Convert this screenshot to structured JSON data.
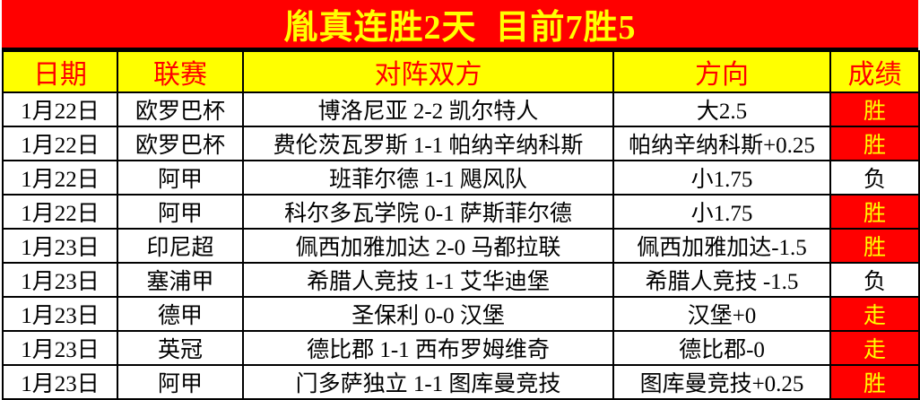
{
  "banner": {
    "title": "胤真连胜2天  目前7胜5"
  },
  "table": {
    "headers": {
      "date": "日期",
      "league": "联赛",
      "match": "对阵双方",
      "direction": "方向",
      "result": "成绩"
    },
    "rows": [
      {
        "date": "1月22日",
        "league": "欧罗巴杯",
        "match": "博洛尼亚 2-2 凯尔特人",
        "direction": "大2.5",
        "result": "胜",
        "highlight": true
      },
      {
        "date": "1月22日",
        "league": "欧罗巴杯",
        "match": "费伦茨瓦罗斯 1-1 帕纳辛纳科斯",
        "direction": "帕纳辛纳科斯+0.25",
        "result": "胜",
        "highlight": true
      },
      {
        "date": "1月22日",
        "league": "阿甲",
        "match": "班菲尔德 1-1 飓风队",
        "direction": "小1.75",
        "result": "负",
        "highlight": false
      },
      {
        "date": "1月22日",
        "league": "阿甲",
        "match": "科尔多瓦学院 0-1 萨斯菲尔德",
        "direction": "小1.75",
        "result": "胜",
        "highlight": true
      },
      {
        "date": "1月23日",
        "league": "印尼超",
        "match": "佩西加雅加达 2-0 马都拉联",
        "direction": "佩西加雅加达-1.5",
        "result": "胜",
        "highlight": true
      },
      {
        "date": "1月23日",
        "league": "塞浦甲",
        "match": "希腊人竞技 1-1 艾华迪堡",
        "direction": "希腊人竞技 -1.5",
        "result": "负",
        "highlight": false
      },
      {
        "date": "1月23日",
        "league": "德甲",
        "match": "圣保利 0-0 汉堡",
        "direction": "汉堡+0",
        "result": "走",
        "highlight": true
      },
      {
        "date": "1月23日",
        "league": "英冠",
        "match": "德比郡 1-1 西布罗姆维奇",
        "direction": "德比郡-0",
        "result": "走",
        "highlight": true
      },
      {
        "date": "1月23日",
        "league": "阿甲",
        "match": "门多萨独立 1-1 图库曼竞技",
        "direction": "图库曼竞技+0.25",
        "result": "胜",
        "highlight": true
      }
    ]
  },
  "colors": {
    "banner_bg": "#ff0000",
    "banner_text": "#ffff00",
    "header_bg": "#ffff00",
    "header_text": "#ff0000",
    "win_cell_bg": "#ff0000",
    "win_cell_text": "#ffff00",
    "lose_cell_bg": "#ffffff",
    "lose_cell_text": "#000000",
    "border": "#000000"
  }
}
